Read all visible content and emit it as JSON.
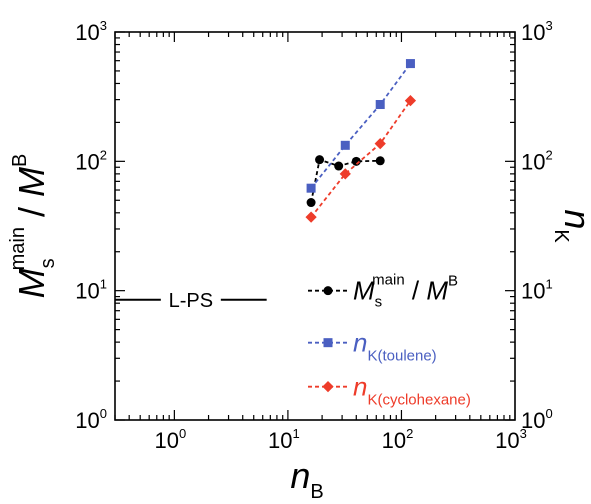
{
  "chart_data": {
    "type": "scatter",
    "x_scale": "log",
    "y_scale": "log",
    "y2_scale": "log",
    "xlim": [
      0.3,
      1000
    ],
    "ylim": [
      1,
      1000
    ],
    "y2lim": [
      1,
      1000
    ],
    "grid": false,
    "legend_position": "bottom-right",
    "x_ticks": [
      {
        "base": "10",
        "exp": "0",
        "value": 1
      },
      {
        "base": "10",
        "exp": "1",
        "value": 10
      },
      {
        "base": "10",
        "exp": "2",
        "value": 100
      },
      {
        "base": "10",
        "exp": "3",
        "value": 1000
      }
    ],
    "y_ticks": [
      {
        "base": "10",
        "exp": "0",
        "value": 1
      },
      {
        "base": "10",
        "exp": "1",
        "value": 10
      },
      {
        "base": "10",
        "exp": "2",
        "value": 100
      },
      {
        "base": "10",
        "exp": "3",
        "value": 1000
      }
    ],
    "xlabel": {
      "main": "n",
      "sub": "B"
    },
    "ylabel": {
      "m1": "M",
      "sub1": "s",
      "sup1": "main",
      "sep": " / ",
      "m2": "M",
      "sup2": "B"
    },
    "y2label": {
      "main": "n",
      "sub": "K"
    },
    "series": [
      {
        "key": "ms",
        "color": "#000000",
        "marker": "circle",
        "legend": {
          "main": "M",
          "sub": "s",
          "sup": "main",
          "sep": " / ",
          "main2": "M",
          "sup2": "B"
        },
        "x": [
          16,
          19,
          28,
          40,
          65
        ],
        "y": [
          48,
          103,
          92,
          100,
          101
        ]
      },
      {
        "key": "toulene",
        "color": "#4a5fc1",
        "marker": "square",
        "legend": {
          "main": "n",
          "sub": "K(toulene)"
        },
        "x": [
          16,
          32,
          65,
          120
        ],
        "y": [
          62,
          133,
          275,
          570
        ]
      },
      {
        "key": "cyclohexane",
        "color": "#ee3c2a",
        "marker": "diamond",
        "legend": {
          "main": "n",
          "sub": "K(cyclohexane)"
        },
        "x": [
          16,
          32,
          65,
          120
        ],
        "y": [
          37,
          80,
          137,
          295
        ]
      }
    ],
    "annotations": [
      {
        "text": "L-PS",
        "y": 8.5,
        "x_from": 0.3,
        "x_to": 6.5
      }
    ]
  }
}
